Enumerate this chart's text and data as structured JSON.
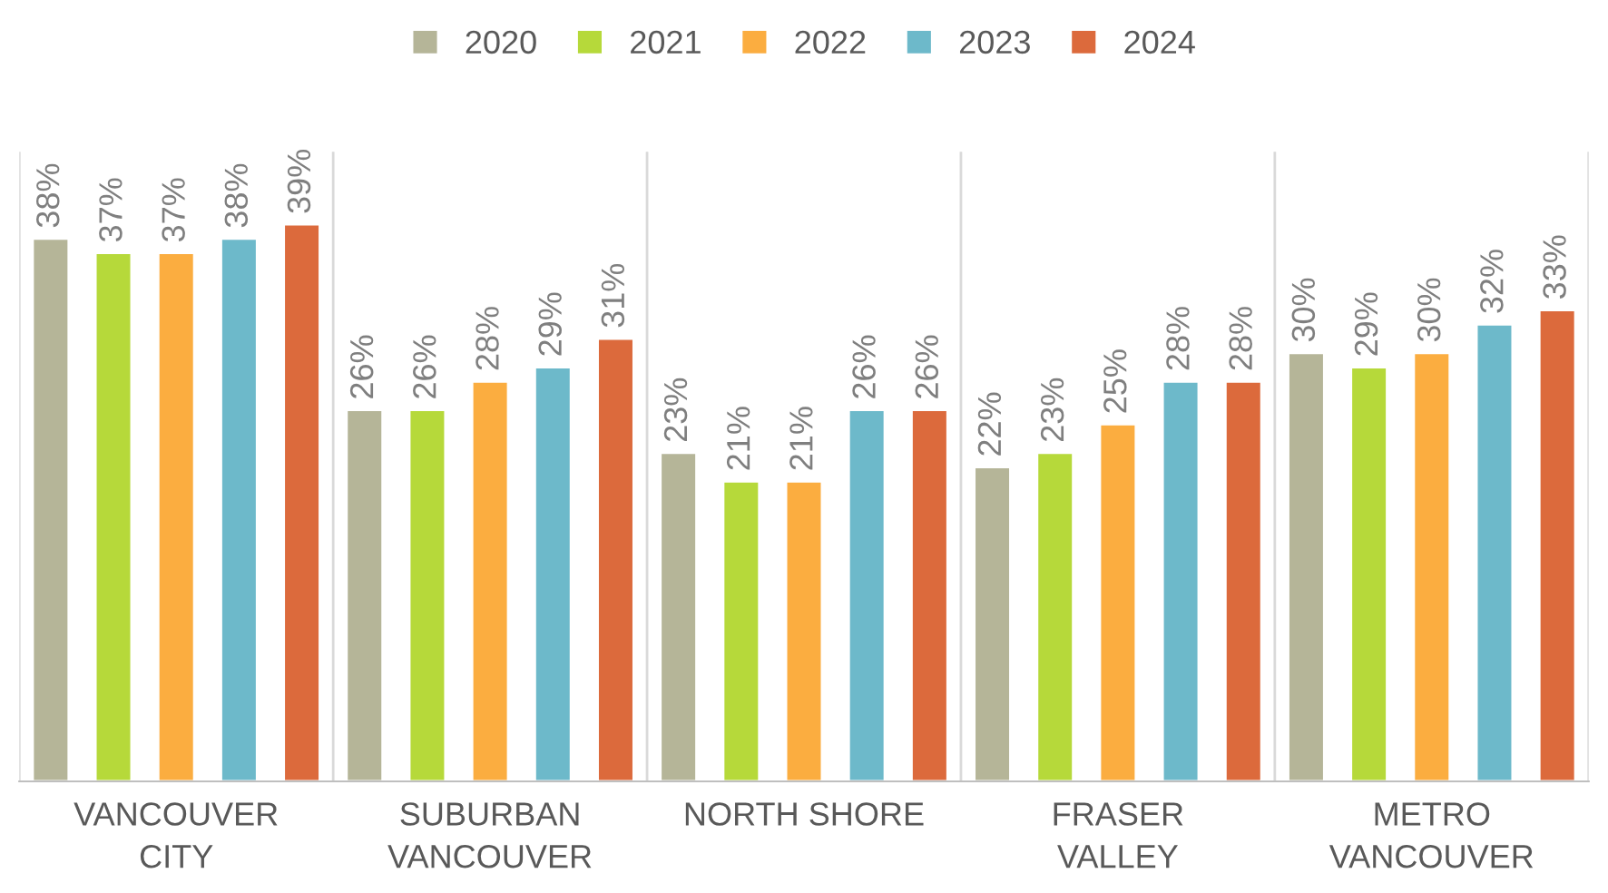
{
  "chart_data": {
    "type": "bar",
    "categories": [
      "VANCOUVER\nCITY",
      "SUBURBAN\nVANCOUVER",
      "NORTH SHORE",
      "FRASER\nVALLEY",
      "METRO\nVANCOUVER"
    ],
    "series": [
      {
        "name": "2020",
        "color": "#b5b598",
        "values": [
          38,
          26,
          23,
          22,
          30
        ],
        "value_labels": [
          "38%",
          "26%",
          "23%",
          "22%",
          "30%"
        ]
      },
      {
        "name": "2021",
        "color": "#b6d93a",
        "values": [
          37,
          26,
          21,
          23,
          29
        ],
        "value_labels": [
          "37%",
          "26%",
          "21%",
          "23%",
          "29%"
        ]
      },
      {
        "name": "2022",
        "color": "#fbad40",
        "values": [
          37,
          28,
          21,
          25,
          30
        ],
        "value_labels": [
          "37%",
          "28%",
          "21%",
          "25%",
          "30%"
        ]
      },
      {
        "name": "2023",
        "color": "#6db9ca",
        "values": [
          38,
          29,
          26,
          28,
          32
        ],
        "value_labels": [
          "38%",
          "29%",
          "26%",
          "28%",
          "32%"
        ]
      },
      {
        "name": "2024",
        "color": "#dc6a3c",
        "values": [
          39,
          31,
          26,
          28,
          33
        ],
        "value_labels": [
          "39%",
          "31%",
          "26%",
          "28%",
          "33%"
        ]
      }
    ],
    "grid": "x",
    "legend": "top",
    "tick_labels": "x"
  }
}
